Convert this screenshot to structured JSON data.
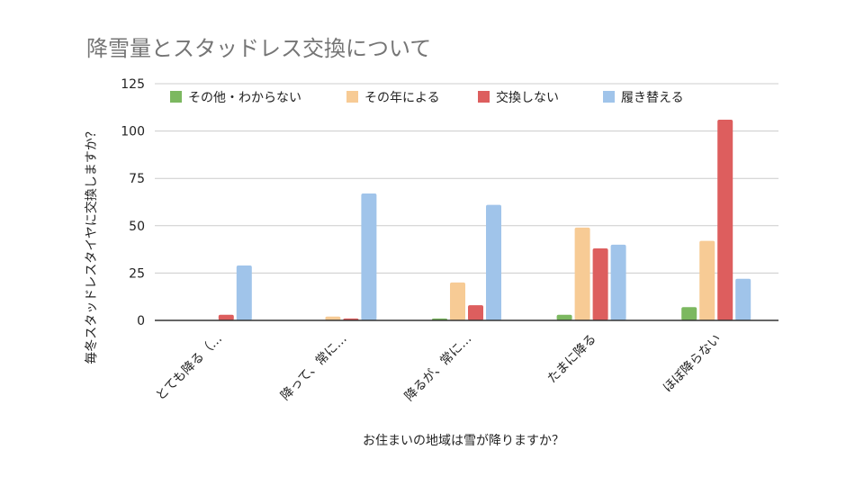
{
  "chart_data": {
    "type": "bar",
    "title": "降雪量とスタッドレス交換について",
    "xlabel": "お住まいの地域は雪が降りますか？",
    "ylabel": "毎冬スタッドレスタイヤに交換しますか？",
    "ylim": [
      0,
      125
    ],
    "yticks": [
      "0",
      "25",
      "50",
      "75",
      "100",
      "125"
    ],
    "grid": true,
    "legend_position": "top",
    "categories": [
      "とても降る（…",
      "降って、常に…",
      "降るが、常に…",
      "たまに降る",
      "ほぼ降らない"
    ],
    "series": [
      {
        "name": "その他・わからない",
        "color": "#7cb860",
        "values": [
          0,
          0,
          1,
          3,
          7
        ]
      },
      {
        "name": "その年による",
        "color": "#f7cb95",
        "values": [
          0,
          2,
          20,
          49,
          42
        ]
      },
      {
        "name": "交換しない",
        "color": "#dd5e5e",
        "values": [
          3,
          1,
          8,
          38,
          106
        ]
      },
      {
        "name": "履き替える",
        "color": "#a0c4ea",
        "values": [
          29,
          67,
          61,
          40,
          22
        ]
      }
    ]
  }
}
